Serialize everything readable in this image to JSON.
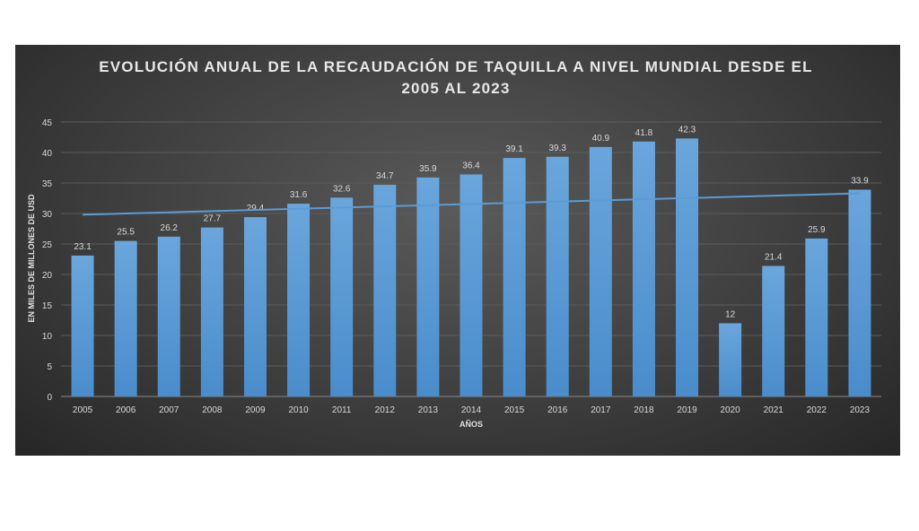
{
  "chart_data": {
    "type": "bar",
    "title_line1": "EVOLUCIÓN ANUAL DE LA RECAUDACIÓN  DE TAQUILLA  A NIVEL MUNDIAL DESDE EL",
    "title_line2": "2005 AL 2023",
    "xlabel": "AÑOS",
    "ylabel": "EN MILES DE MILLONES DE USD",
    "categories": [
      "2005",
      "2006",
      "2007",
      "2008",
      "2009",
      "2010",
      "2011",
      "2012",
      "2013",
      "2014",
      "2015",
      "2016",
      "2017",
      "2018",
      "2019",
      "2020",
      "2021",
      "2022",
      "2023"
    ],
    "values": [
      23.1,
      25.5,
      26.2,
      27.7,
      29.4,
      31.6,
      32.6,
      34.7,
      35.9,
      36.4,
      39.1,
      39.3,
      40.9,
      41.8,
      42.3,
      12,
      21.4,
      25.9,
      33.9
    ],
    "ylim": [
      0,
      45
    ],
    "yticks": [
      0,
      5,
      10,
      15,
      20,
      25,
      30,
      35,
      40,
      45
    ],
    "trendline": {
      "type": "linear",
      "start": 29.8,
      "end": 33.3
    },
    "grid": true,
    "bar_color": "#5b9bd5",
    "trend_color": "#5b9bd5"
  }
}
